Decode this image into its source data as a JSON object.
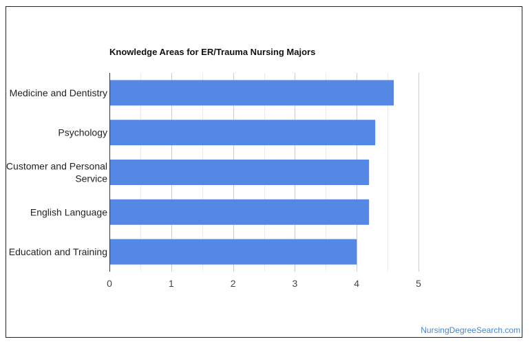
{
  "chart_data": {
    "type": "bar",
    "orientation": "horizontal",
    "title": "Knowledge Areas for ER/Trauma Nursing Majors",
    "categories": [
      "Medicine and Dentistry",
      "Psychology",
      "Customer and Personal Service",
      "English Language",
      "Education and Training"
    ],
    "category_lines": [
      [
        "Medicine and Dentistry"
      ],
      [
        "Psychology"
      ],
      [
        "Customer and Personal",
        "Service"
      ],
      [
        "English Language"
      ],
      [
        "Education and Training"
      ]
    ],
    "values": [
      4.6,
      4.3,
      4.2,
      4.2,
      4.0
    ],
    "xlim": [
      0,
      5
    ],
    "xticks": [
      "0",
      "1",
      "2",
      "3",
      "4",
      "5"
    ],
    "grid": true,
    "bar_color": "#5587e4"
  },
  "watermark": {
    "text": "NursingDegreeSearch.com",
    "color": "#4a86c8"
  }
}
